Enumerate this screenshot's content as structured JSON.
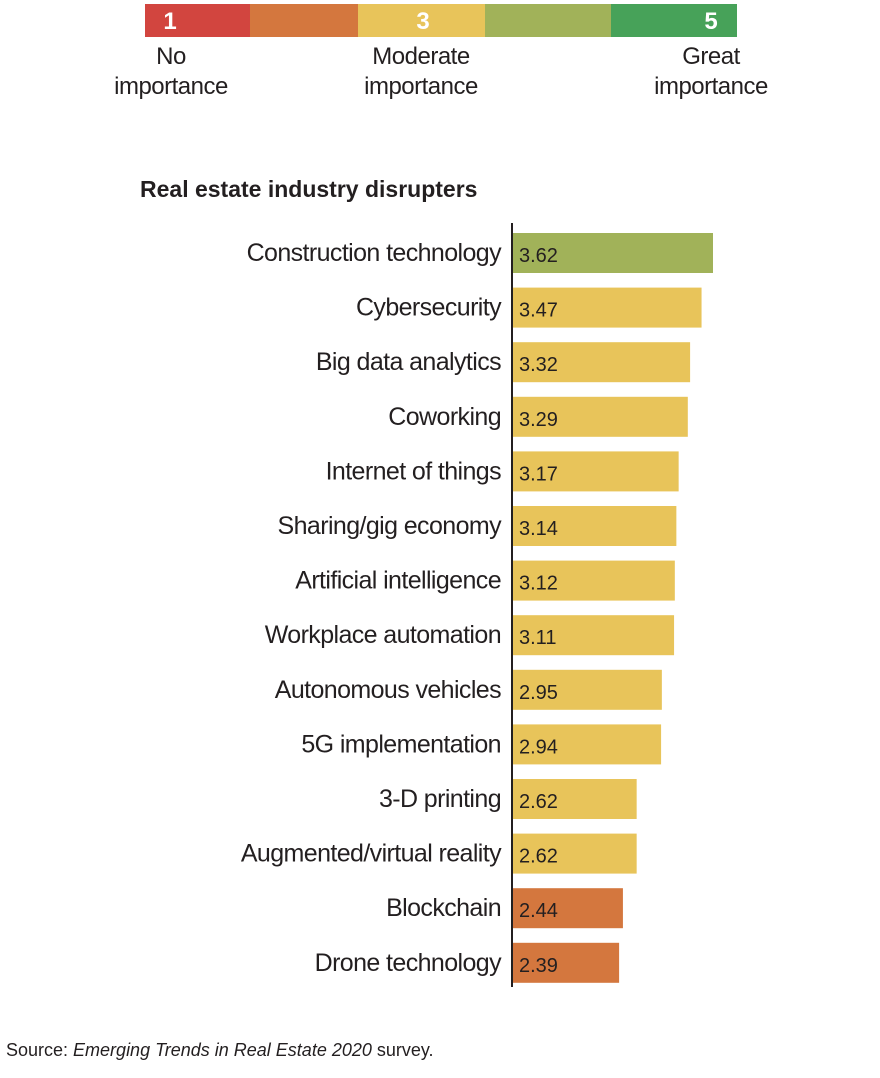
{
  "scale": {
    "segments": [
      {
        "level": 1,
        "color": "#d2453f"
      },
      {
        "level": 2,
        "color": "#d4773e"
      },
      {
        "level": 3,
        "color": "#e8c45a"
      },
      {
        "level": 4,
        "color": "#a1b259"
      },
      {
        "level": 5,
        "color": "#47a259"
      }
    ],
    "numbers": {
      "low": "1",
      "mid": "3",
      "high": "5"
    },
    "labels": {
      "low_line1": "No",
      "low_line2": "importance",
      "mid_line1": "Moderate",
      "mid_line2": "importance",
      "high_line1": "Great",
      "high_line2": "importance"
    }
  },
  "chart_data": {
    "type": "bar",
    "orientation": "horizontal",
    "title": "Real estate industry disrupters",
    "categories": [
      "Construction technology",
      "Cybersecurity",
      "Big data analytics",
      "Coworking",
      "Internet of things",
      "Sharing/gig economy",
      "Artificial intelligence",
      "Workplace automation",
      "Autonomous vehicles",
      "5G implementation",
      "3-D printing",
      "Augmented/virtual reality",
      "Blockchain",
      "Drone technology"
    ],
    "values": [
      3.62,
      3.47,
      3.32,
      3.29,
      3.17,
      3.14,
      3.12,
      3.11,
      2.95,
      2.94,
      2.62,
      2.62,
      2.44,
      2.39
    ],
    "value_labels": [
      "3.62",
      "3.47",
      "3.32",
      "3.29",
      "3.17",
      "3.14",
      "3.12",
      "3.11",
      "2.95",
      "2.94",
      "2.62",
      "2.62",
      "2.44",
      "2.39"
    ],
    "bar_colors": [
      "#a1b259",
      "#e8c45a",
      "#e8c45a",
      "#e8c45a",
      "#e8c45a",
      "#e8c45a",
      "#e8c45a",
      "#e8c45a",
      "#e8c45a",
      "#e8c45a",
      "#e8c45a",
      "#e8c45a",
      "#d4773e",
      "#d4773e"
    ],
    "xlim": [
      1,
      5
    ],
    "grid": false
  },
  "source": {
    "prefix": "Source: ",
    "title": "Emerging Trends in Real Estate 2020",
    "suffix": " survey."
  }
}
